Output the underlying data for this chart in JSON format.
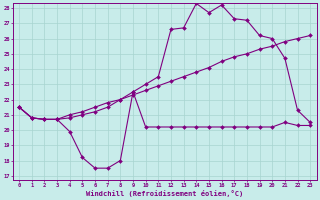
{
  "title": "",
  "xlabel": "Windchill (Refroidissement éolien,°C)",
  "background_color": "#c8ecea",
  "grid_color": "#a8d4d0",
  "line_color": "#800080",
  "xlim": [
    -0.5,
    23.5
  ],
  "ylim": [
    16.7,
    28.3
  ],
  "xticks": [
    0,
    1,
    2,
    3,
    4,
    5,
    6,
    7,
    8,
    9,
    10,
    11,
    12,
    13,
    14,
    15,
    16,
    17,
    18,
    19,
    20,
    21,
    22,
    23
  ],
  "yticks": [
    17,
    18,
    19,
    20,
    21,
    22,
    23,
    24,
    25,
    26,
    27,
    28
  ],
  "line1_x": [
    0,
    1,
    2,
    3,
    4,
    5,
    6,
    7,
    8,
    9,
    10,
    11,
    12,
    13,
    14,
    15,
    16,
    17,
    18,
    19,
    20,
    21,
    22,
    23
  ],
  "line1_y": [
    21.5,
    20.8,
    20.7,
    20.7,
    19.9,
    18.2,
    17.5,
    17.5,
    18.0,
    22.5,
    20.2,
    20.2,
    20.2,
    20.2,
    20.2,
    20.2,
    20.2,
    20.2,
    20.2,
    20.2,
    20.2,
    20.5,
    20.3,
    20.3
  ],
  "line2_x": [
    0,
    1,
    2,
    3,
    4,
    5,
    6,
    7,
    8,
    9,
    10,
    11,
    12,
    13,
    14,
    15,
    16,
    17,
    18,
    19,
    20,
    21,
    22,
    23
  ],
  "line2_y": [
    21.5,
    20.8,
    20.7,
    20.7,
    20.8,
    21.0,
    21.2,
    21.5,
    22.0,
    22.5,
    23.0,
    23.5,
    26.6,
    26.7,
    28.3,
    27.7,
    28.2,
    27.3,
    27.2,
    26.2,
    26.0,
    24.7,
    21.3,
    20.5
  ],
  "line3_x": [
    0,
    1,
    2,
    3,
    4,
    5,
    6,
    7,
    8,
    9,
    10,
    11,
    12,
    13,
    14,
    15,
    16,
    17,
    18,
    19,
    20,
    21,
    22,
    23
  ],
  "line3_y": [
    21.5,
    20.8,
    20.7,
    20.7,
    21.0,
    21.2,
    21.5,
    21.8,
    22.0,
    22.3,
    22.6,
    22.9,
    23.2,
    23.5,
    23.8,
    24.1,
    24.5,
    24.8,
    25.0,
    25.3,
    25.5,
    25.8,
    26.0,
    26.2
  ]
}
